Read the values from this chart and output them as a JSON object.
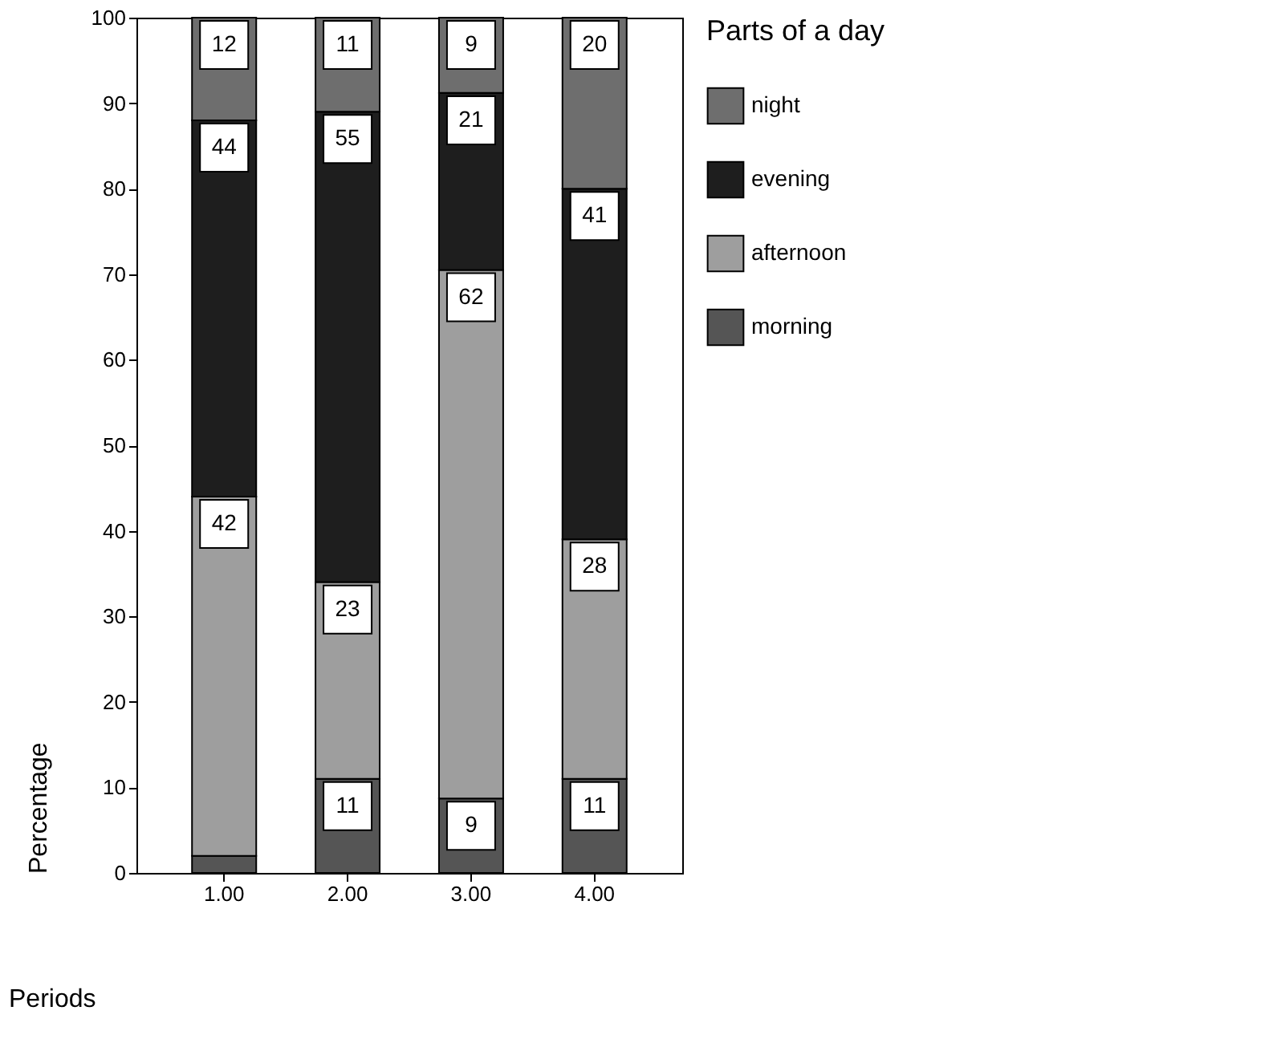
{
  "chart_data": {
    "type": "bar",
    "stacked": true,
    "xlabel": "Periods",
    "ylabel": "Percentage",
    "legend_title": "Parts of a day",
    "legend": "right",
    "categories": [
      "1.00",
      "2.00",
      "3.00",
      "4.00"
    ],
    "ylim": [
      0,
      100
    ],
    "yticks": [
      0,
      10,
      20,
      30,
      40,
      50,
      60,
      70,
      80,
      90,
      100
    ],
    "grid": false,
    "series": [
      {
        "name": "morning",
        "color": "#555555",
        "values": [
          2,
          11,
          8.7,
          11
        ],
        "value_labels": [
          null,
          "11",
          "9",
          "11"
        ]
      },
      {
        "name": "afternoon",
        "color": "#9e9e9e",
        "values": [
          42,
          23,
          61.8,
          28
        ],
        "value_labels": [
          "42",
          "23",
          "62",
          "28"
        ]
      },
      {
        "name": "evening",
        "color": "#1e1e1e",
        "values": [
          44,
          55,
          20.7,
          41
        ],
        "value_labels": [
          "44",
          "55",
          "21",
          "41"
        ]
      },
      {
        "name": "night",
        "color": "#6e6e6e",
        "values": [
          12,
          11,
          8.8,
          20
        ],
        "value_labels": [
          "12",
          "11",
          "9",
          "20"
        ]
      }
    ]
  }
}
